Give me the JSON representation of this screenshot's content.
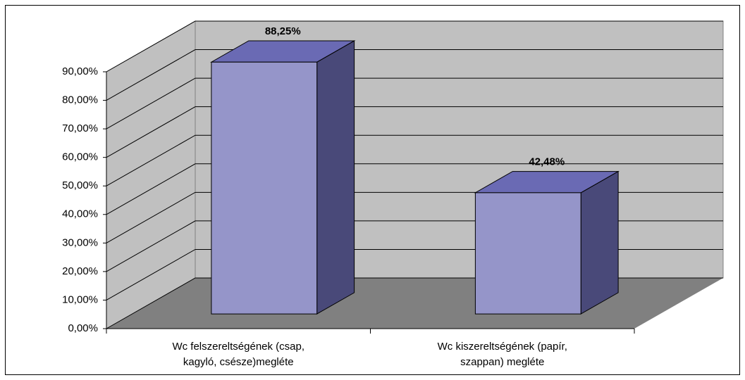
{
  "chart_data": {
    "type": "bar3d",
    "categories": [
      [
        "Wc felszereltségének (csap,",
        "kagyló, csésze)megléte"
      ],
      [
        "Wc  kiszereltségének (papír,",
        "szappan) megléte"
      ]
    ],
    "values": [
      88.25,
      42.48
    ],
    "value_labels": [
      "88,25%",
      "42,48%"
    ],
    "colors": {
      "front": "#9595c9",
      "top": "#6a6ab4",
      "side": "#494979",
      "wall": "#c0c0c0",
      "floor": "#808080"
    },
    "ylim": [
      0,
      90
    ],
    "yticks": [
      {
        "value": 0,
        "label": "0,00%"
      },
      {
        "value": 10,
        "label": "10,00%"
      },
      {
        "value": 20,
        "label": "20,00%"
      },
      {
        "value": 30,
        "label": "30,00%"
      },
      {
        "value": 40,
        "label": "40,00%"
      },
      {
        "value": 50,
        "label": "50,00%"
      },
      {
        "value": 60,
        "label": "60,00%"
      },
      {
        "value": 70,
        "label": "70,00%"
      },
      {
        "value": 80,
        "label": "80,00%"
      },
      {
        "value": 90,
        "label": "90,00%"
      }
    ],
    "grid": true
  }
}
